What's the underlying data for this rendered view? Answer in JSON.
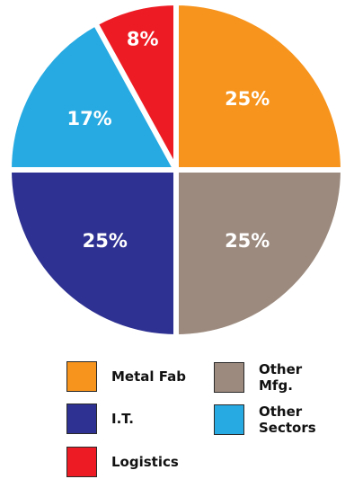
{
  "chart_data": {
    "type": "pie",
    "title": "",
    "start_angle_deg": 0,
    "direction": "clockwise",
    "slices": [
      {
        "name": "Metal Fab",
        "value": 25,
        "label": "25%",
        "color": "#f7941d"
      },
      {
        "name": "Other Mfg.",
        "value": 25,
        "label": "25%",
        "color": "#9c8a7e"
      },
      {
        "name": "I.T.",
        "value": 25,
        "label": "25%",
        "color": "#2e3192"
      },
      {
        "name": "Other Sectors",
        "value": 17,
        "label": "17%",
        "color": "#27aae1"
      },
      {
        "name": "Logistics",
        "value": 8,
        "label": "8%",
        "color": "#ed1c24"
      }
    ],
    "legend": {
      "placement": "bottom",
      "entries": [
        {
          "label": "Metal Fab",
          "color": "#f7941d"
        },
        {
          "label": "Other\nMfg.",
          "color": "#9c8a7e"
        },
        {
          "label": "I.T.",
          "color": "#2e3192"
        },
        {
          "label": "Other\nSectors",
          "color": "#27aae1"
        },
        {
          "label": "Logistics",
          "color": "#ed1c24"
        }
      ]
    }
  }
}
